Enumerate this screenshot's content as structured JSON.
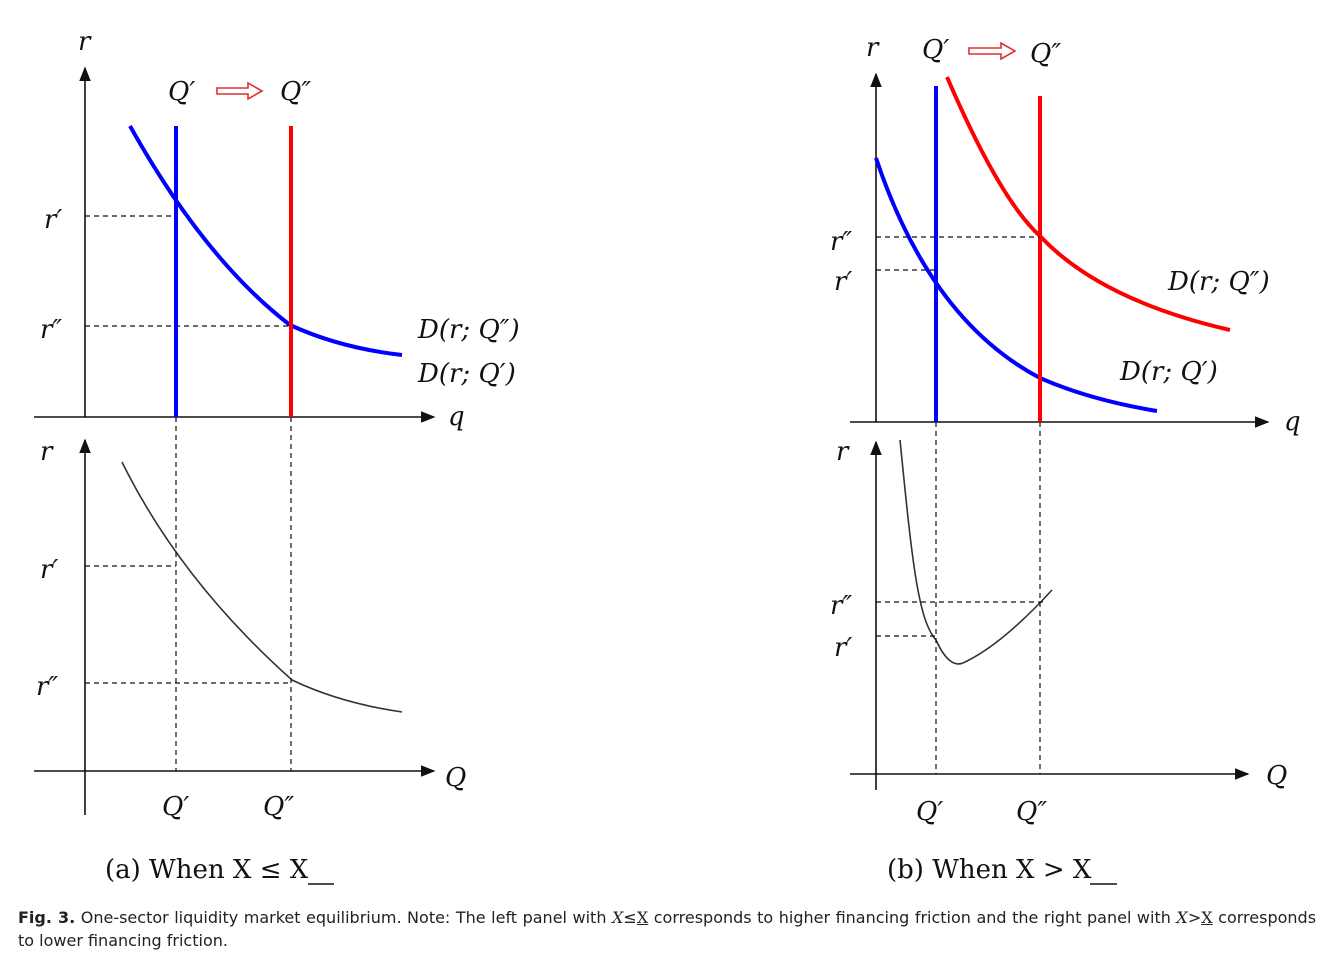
{
  "labels": {
    "r": "r",
    "q": "q",
    "Q": "Q",
    "Q1": "Q′",
    "Q2": "Q″",
    "r1": "r′",
    "r2": "r″",
    "D_Q1": "D(r; Q′)",
    "D_Q2": "D(r; Q″)"
  },
  "subcaptions": {
    "a": "(a) When X ≤ X",
    "b": "(b) When X > X"
  },
  "caption": {
    "fig_label": "Fig. 3.",
    "text1": "One-sector liquidity market equilibrium. Note: The left panel with",
    "text2": "corresponds to higher financing friction and the right panel with",
    "text3": "corresponds to lower financing friction.",
    "X": "X",
    "le": "≤",
    "gt": ">"
  },
  "colors": {
    "blue": "#0000ff",
    "red": "#ff0000",
    "arrow_outline": "#e03030"
  }
}
